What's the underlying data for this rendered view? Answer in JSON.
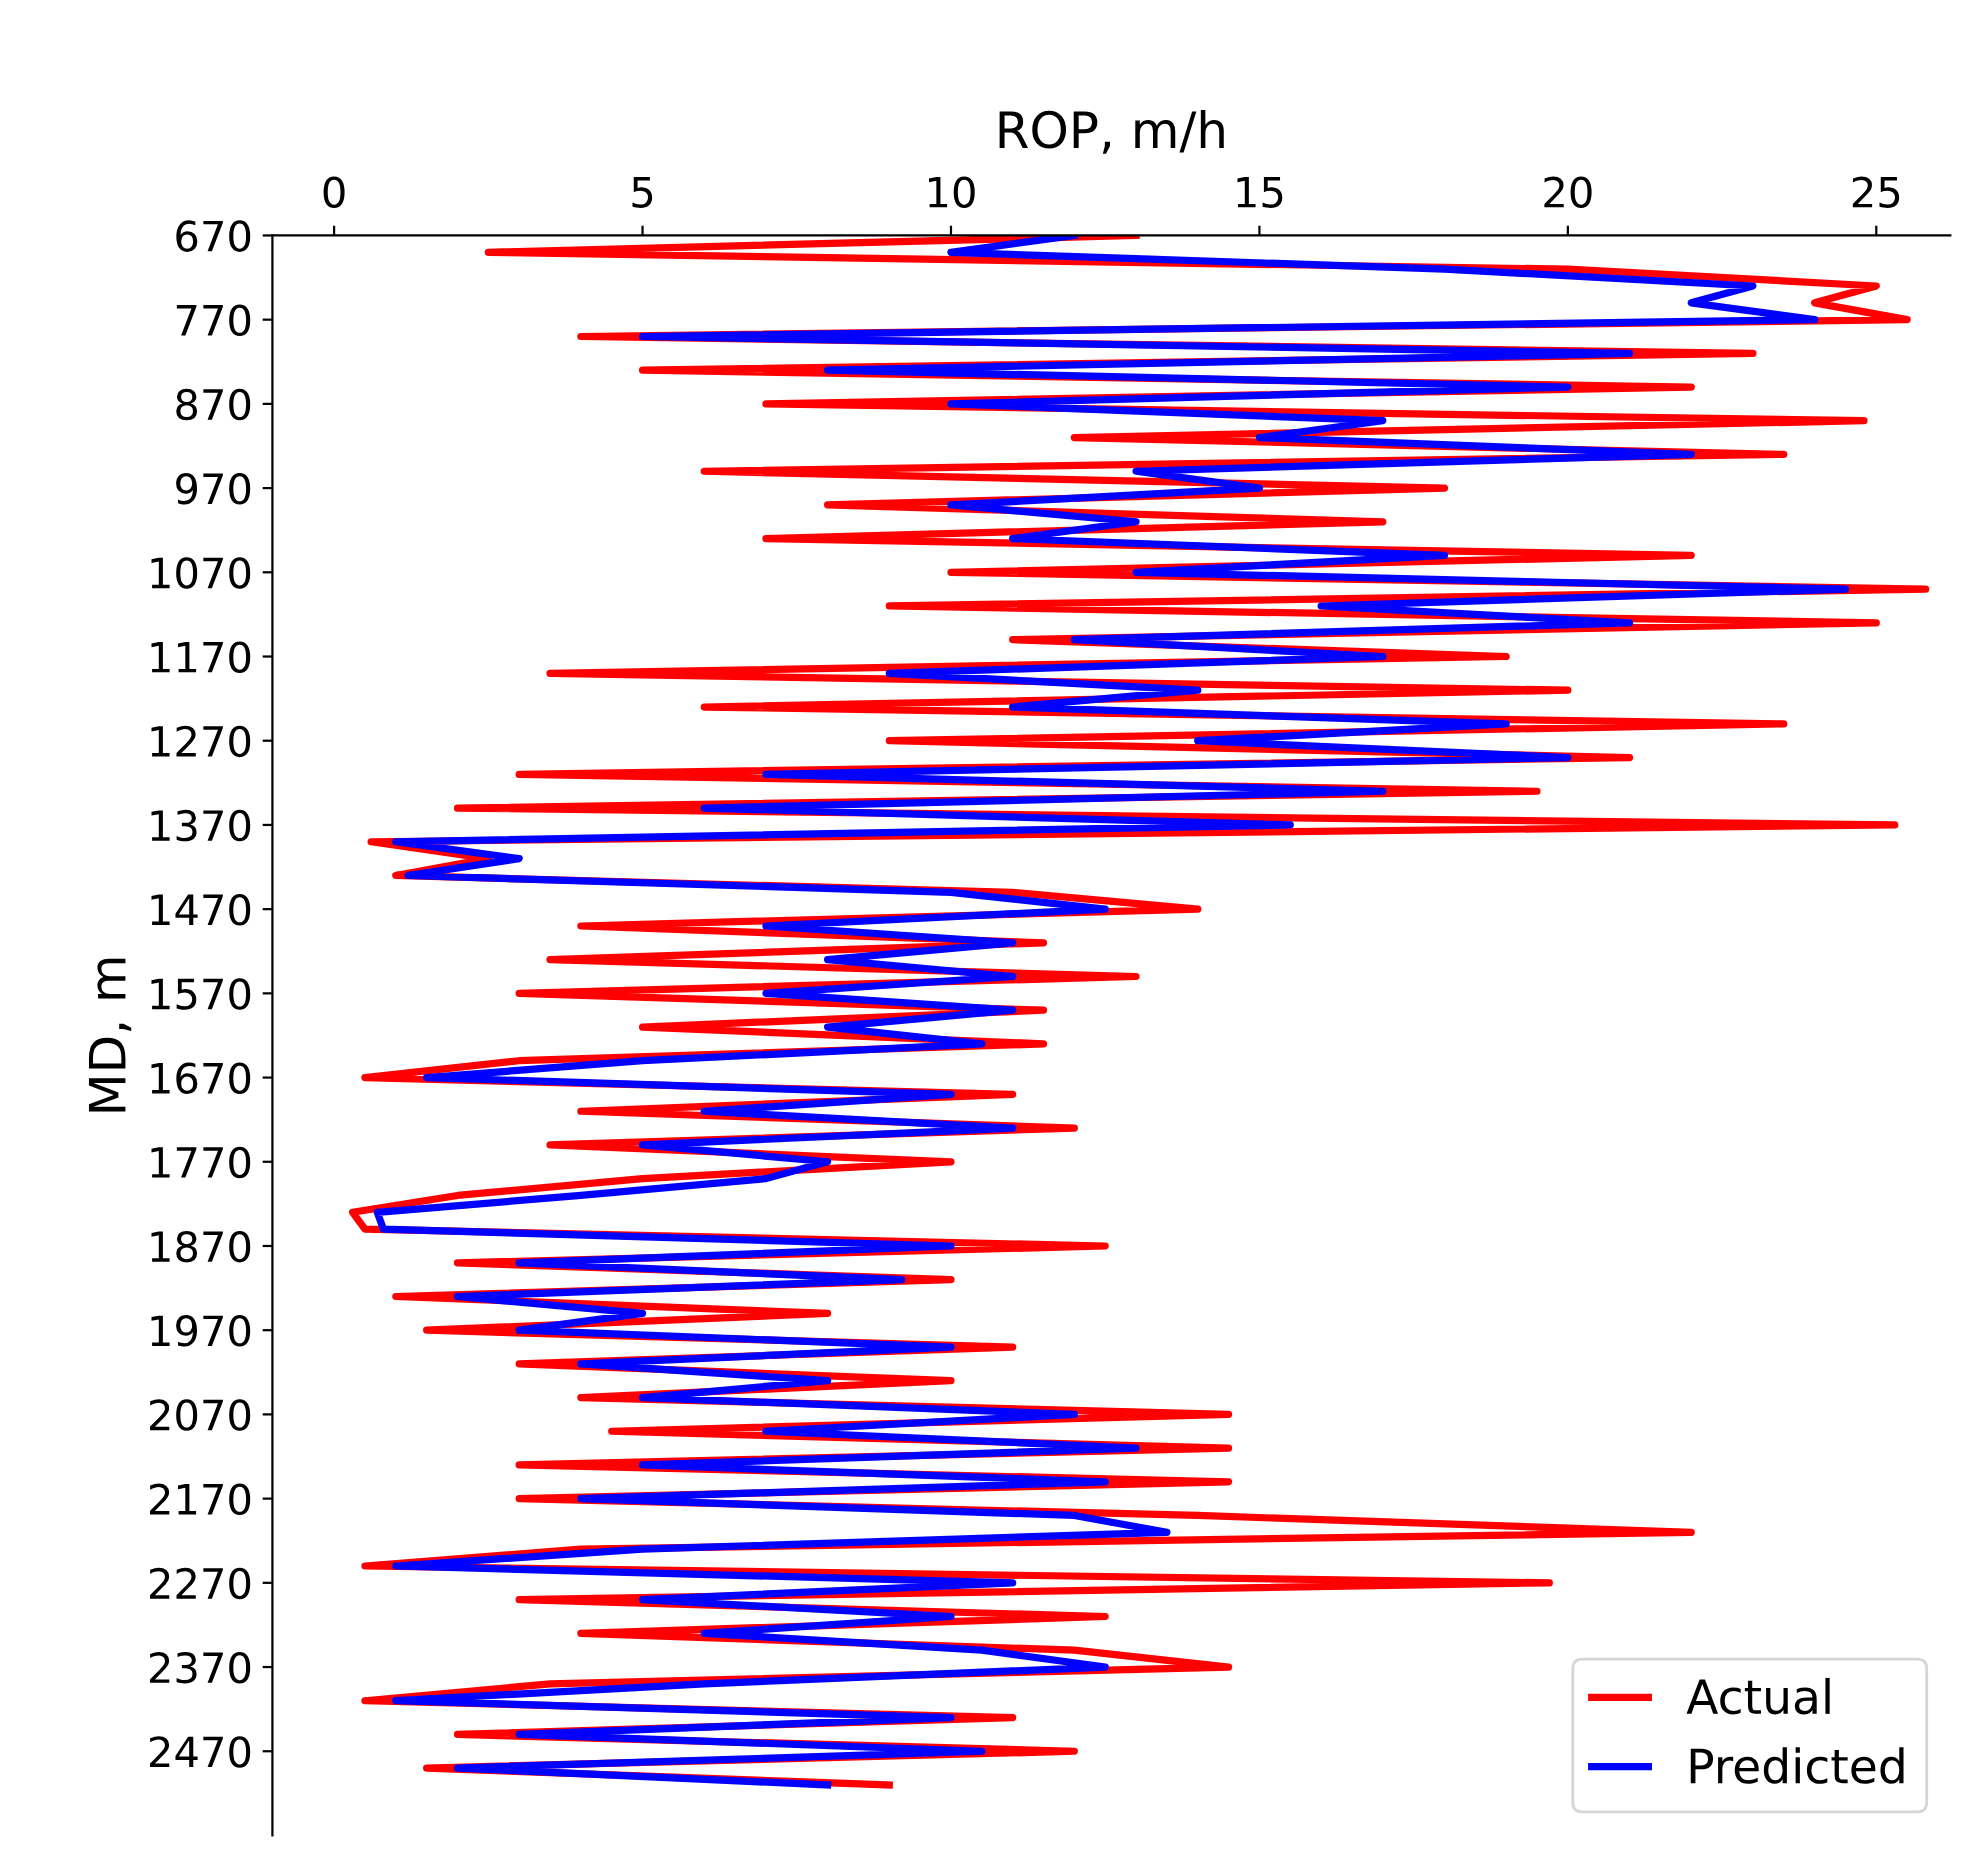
{
  "chart_data": {
    "type": "line",
    "orientation": "horizontal",
    "xlabel": "ROP, m/h",
    "ylabel": "MD, m",
    "x": [
      670,
      690,
      710,
      730,
      750,
      770,
      790,
      810,
      830,
      850,
      870,
      890,
      910,
      930,
      950,
      970,
      990,
      1010,
      1030,
      1050,
      1070,
      1090,
      1110,
      1130,
      1150,
      1170,
      1190,
      1210,
      1230,
      1250,
      1270,
      1290,
      1310,
      1330,
      1350,
      1370,
      1390,
      1410,
      1430,
      1450,
      1470,
      1490,
      1510,
      1530,
      1550,
      1570,
      1590,
      1610,
      1630,
      1650,
      1670,
      1690,
      1710,
      1730,
      1750,
      1770,
      1790,
      1810,
      1830,
      1850,
      1870,
      1890,
      1910,
      1930,
      1950,
      1970,
      1990,
      2010,
      2030,
      2050,
      2070,
      2090,
      2110,
      2130,
      2150,
      2170,
      2190,
      2210,
      2230,
      2250,
      2270,
      2290,
      2310,
      2330,
      2350,
      2370,
      2390,
      2410,
      2430,
      2450,
      2470,
      2490,
      2510
    ],
    "series": [
      {
        "name": "Actual",
        "color": "#ff0000",
        "values": [
          13,
          2.5,
          20,
          25,
          24,
          25.5,
          4,
          23,
          5,
          22,
          7,
          24.8,
          12,
          23.5,
          6,
          18,
          8,
          17,
          7,
          22,
          10,
          25.8,
          9,
          25,
          11,
          19,
          3.5,
          20,
          6,
          23.5,
          9,
          21,
          3,
          19.5,
          2,
          25.3,
          0.6,
          2.5,
          1,
          11,
          14,
          4,
          11.5,
          3.5,
          13,
          3,
          11.5,
          5,
          11.5,
          3,
          0.5,
          11,
          4,
          12,
          3.5,
          10,
          5,
          2,
          0.3,
          0.5,
          12.5,
          2,
          10,
          1,
          8,
          1.5,
          11,
          3,
          10,
          4,
          14.5,
          4.5,
          14.5,
          3,
          14.5,
          3,
          14,
          22,
          4,
          0.5,
          19.7,
          3,
          12.5,
          4,
          12,
          14.5,
          3.5,
          0.5,
          11,
          2,
          12,
          1.5,
          9
        ]
      },
      {
        "name": "Predicted",
        "color": "#0000ff",
        "values": [
          12,
          10,
          18,
          23,
          22,
          24,
          5,
          21,
          8,
          20,
          10,
          17,
          15,
          22,
          13,
          15,
          10,
          13,
          11,
          18,
          13,
          24.5,
          16,
          21,
          12,
          17,
          9,
          14,
          11,
          19,
          14,
          20,
          7,
          17,
          6,
          15.5,
          1,
          3,
          1.2,
          10,
          12.5,
          7,
          11,
          8,
          11,
          7,
          11,
          8,
          10.5,
          5,
          1.5,
          10,
          6,
          11,
          5,
          8,
          7,
          4,
          0.7,
          0.8,
          10,
          3,
          9.2,
          2,
          5,
          3,
          10,
          4,
          8,
          5,
          12,
          7,
          13,
          5,
          12.5,
          4,
          12,
          13.5,
          5,
          1,
          11,
          5,
          10,
          6,
          10.5,
          12.5,
          6,
          1,
          10,
          3,
          10.5,
          2,
          8
        ]
      }
    ],
    "xlim": [
      -1,
      26.2
    ],
    "xticks": [
      0,
      5,
      10,
      15,
      20,
      25
    ],
    "ylim": [
      2570,
      670
    ],
    "yticks": [
      670,
      770,
      870,
      970,
      1070,
      1170,
      1270,
      1370,
      1470,
      1570,
      1670,
      1770,
      1870,
      1970,
      2070,
      2170,
      2270,
      2370,
      2470
    ],
    "grid": false,
    "legend": "bottom right",
    "line_style": "solid",
    "marker": "none"
  }
}
